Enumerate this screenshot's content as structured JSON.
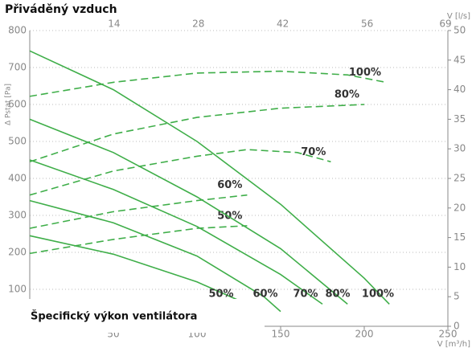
{
  "chart_data": {
    "type": "line",
    "title": "Přiváděný vzduch",
    "ylabel": "Δ Pstat [Pa]",
    "xlabel": "V [m³/h]",
    "x2label": "V [l/s]",
    "annotation": "Špecifický výkon ventilátora",
    "xlim": [
      0,
      250
    ],
    "xticks": [
      50,
      100,
      150,
      200,
      250
    ],
    "x2lim": [
      0,
      69.4
    ],
    "x2ticks": [
      14,
      28,
      42,
      56,
      69
    ],
    "ylim": [
      0,
      800
    ],
    "yticks": [
      100,
      200,
      300,
      400,
      500,
      600,
      700,
      800
    ],
    "y2lim": [
      0,
      50
    ],
    "y2ticks": [
      0,
      5,
      10,
      15,
      20,
      25,
      30,
      35,
      40,
      45,
      50
    ],
    "grid": true,
    "series": [
      {
        "name": "100%",
        "color": "#3fae49",
        "style": "dashed",
        "x": [
          0,
          50,
          100,
          150,
          190,
          213
        ],
        "values": [
          622,
          660,
          685,
          690,
          680,
          660
        ]
      },
      {
        "name": "80%",
        "color": "#3fae49",
        "style": "dashed",
        "x": [
          0,
          50,
          100,
          150,
          200
        ],
        "values": [
          445,
          520,
          565,
          590,
          600
        ]
      },
      {
        "name": "70%",
        "color": "#3fae49",
        "style": "dashed",
        "x": [
          0,
          50,
          100,
          130,
          160,
          180
        ],
        "values": [
          355,
          420,
          460,
          478,
          470,
          445
        ]
      },
      {
        "name": "60%",
        "color": "#3fae49",
        "style": "dashed",
        "x": [
          0,
          50,
          100,
          130
        ],
        "values": [
          265,
          310,
          340,
          355
        ]
      },
      {
        "name": "50%",
        "color": "#3fae49",
        "style": "dashed",
        "x": [
          0,
          50,
          100,
          130
        ],
        "values": [
          197,
          235,
          265,
          272
        ]
      },
      {
        "name": "100%",
        "color": "#3fae49",
        "style": "solid",
        "x": [
          0,
          50,
          100,
          150,
          200,
          215
        ],
        "values": [
          745,
          640,
          500,
          330,
          130,
          60
        ]
      },
      {
        "name": "80%",
        "color": "#3fae49",
        "style": "solid",
        "x": [
          0,
          50,
          100,
          150,
          190
        ],
        "values": [
          560,
          470,
          350,
          210,
          60
        ]
      },
      {
        "name": "70%",
        "color": "#3fae49",
        "style": "solid",
        "x": [
          0,
          50,
          100,
          150,
          175
        ],
        "values": [
          450,
          370,
          270,
          140,
          60
        ]
      },
      {
        "name": "60%",
        "color": "#3fae49",
        "style": "solid",
        "x": [
          0,
          50,
          100,
          140,
          150
        ],
        "values": [
          340,
          280,
          190,
          80,
          40
        ]
      },
      {
        "name": "50%",
        "color": "#3fae49",
        "style": "solid",
        "x": [
          0,
          50,
          100,
          130
        ],
        "values": [
          245,
          195,
          120,
          60
        ]
      }
    ]
  }
}
